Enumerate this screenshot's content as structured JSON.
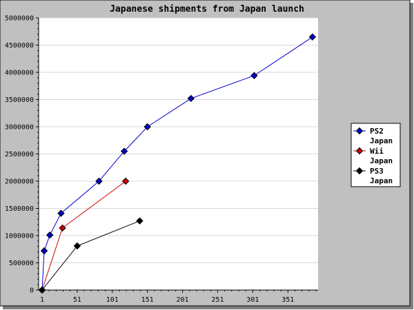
{
  "chart_data": {
    "type": "line",
    "title": "Japanese shipments from Japan launch",
    "xlabel": "",
    "ylabel": "",
    "xlim": [
      1,
      386
    ],
    "ylim": [
      0,
      5000000
    ],
    "x_ticks": [
      1,
      51,
      101,
      151,
      201,
      251,
      301,
      351
    ],
    "x_tick_labels": [
      "1",
      "51",
      "101",
      "151",
      "201",
      "251",
      "301",
      "351"
    ],
    "y_ticks": [
      0,
      500000,
      1000000,
      1500000,
      2000000,
      2500000,
      3000000,
      3500000,
      4000000,
      4500000,
      5000000
    ],
    "y_tick_labels": [
      "0",
      "500000",
      "1000000",
      "1500000",
      "2000000",
      "2500000",
      "3000000",
      "3500000",
      "4000000",
      "4500000",
      "5000000"
    ],
    "grid": true,
    "legend_position": "right",
    "background_color": "#c0c0c0",
    "plot_background": "#ffffff",
    "series": [
      {
        "name": "PS2 Japan",
        "name_lines": [
          "PS2",
          "Japan"
        ],
        "color": "#0000cc",
        "marker_color": "#0000cc",
        "x": [
          1,
          4,
          12,
          28,
          82,
          118,
          151,
          213,
          303,
          386
        ],
        "y": [
          0,
          720000,
          1010000,
          1410000,
          2000000,
          2550000,
          3000000,
          3520000,
          3940000,
          4650000
        ]
      },
      {
        "name": "Wii Japan",
        "name_lines": [
          "Wii",
          "Japan"
        ],
        "color": "#cc0000",
        "marker_color": "#cc0000",
        "x": [
          1,
          30,
          120
        ],
        "y": [
          0,
          1140000,
          2000000
        ]
      },
      {
        "name": "PS3 Japan",
        "name_lines": [
          "PS3",
          "Japan"
        ],
        "color": "#000000",
        "marker_color": "#000000",
        "x": [
          1,
          51,
          140
        ],
        "y": [
          0,
          810000,
          1270000
        ]
      }
    ]
  }
}
